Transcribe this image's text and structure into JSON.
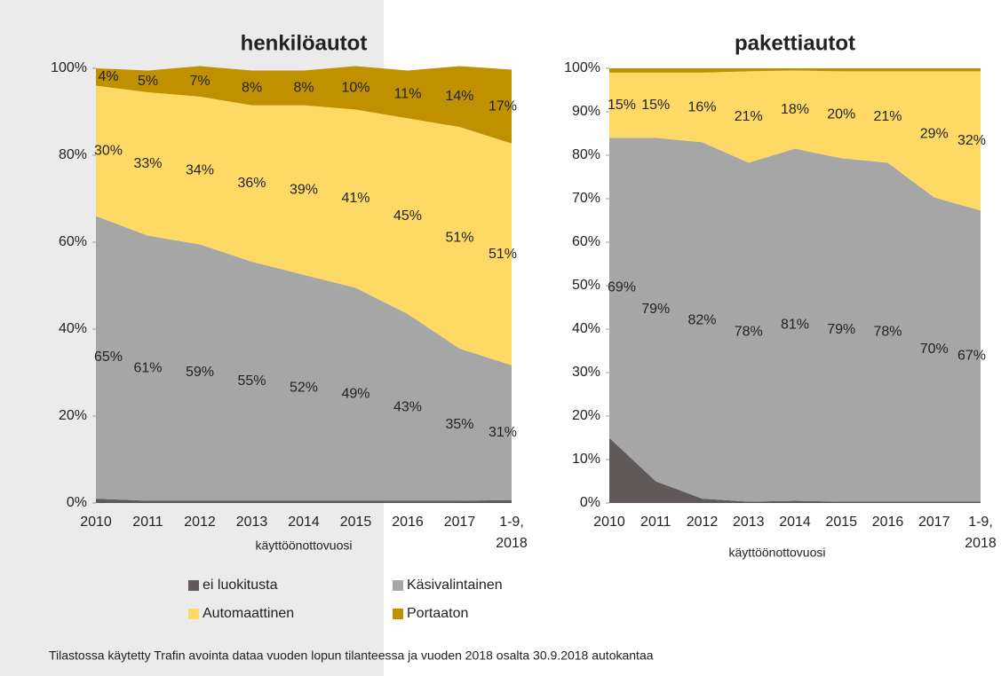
{
  "chart_data": [
    {
      "type": "stacked_area",
      "title": "henkilöautot",
      "xlabel": "käyttöönottovuosi",
      "categories": [
        "2010",
        "2011",
        "2012",
        "2013",
        "2014",
        "2015",
        "2016",
        "2017",
        "1-9, 2018"
      ],
      "ylim": [
        0,
        100
      ],
      "yticks": [
        {
          "value": 0,
          "label": "0%"
        },
        {
          "value": 20,
          "label": "20%"
        },
        {
          "value": 40,
          "label": "40%"
        },
        {
          "value": 60,
          "label": "60%"
        },
        {
          "value": 80,
          "label": "80%"
        },
        {
          "value": 100,
          "label": "100%"
        }
      ],
      "series": [
        {
          "name": "ei luokitusta",
          "color": "#5f5959",
          "values": [
            1,
            0.5,
            0.5,
            0.5,
            0.5,
            0.5,
            0.5,
            0.5,
            0.7
          ]
        },
        {
          "name": "Käsivalintainen",
          "color": "#a6a6a6",
          "values": [
            65,
            61,
            59,
            55,
            52,
            49,
            43,
            35,
            31
          ],
          "value_labels": [
            "65%",
            "61%",
            "59%",
            "55%",
            "52%",
            "49%",
            "43%",
            "35%",
            "31%"
          ]
        },
        {
          "name": "Automaattinen",
          "color": "#ffd966",
          "values": [
            30,
            33,
            34,
            36,
            39,
            41,
            45,
            51,
            51
          ],
          "value_labels": [
            "30%",
            "33%",
            "34%",
            "36%",
            "39%",
            "41%",
            "45%",
            "51%",
            "51%"
          ]
        },
        {
          "name": "Portaaton",
          "color": "#bf9000",
          "values": [
            4,
            5,
            7,
            8,
            8,
            10,
            11,
            14,
            17
          ],
          "value_labels": [
            "4%",
            "5%",
            "7%",
            "8%",
            "8%",
            "10%",
            "11%",
            "14%",
            "17%"
          ]
        }
      ]
    },
    {
      "type": "stacked_area",
      "title": "pakettiautot",
      "xlabel": "käyttöönottovuosi",
      "categories": [
        "2010",
        "2011",
        "2012",
        "2013",
        "2014",
        "2015",
        "2016",
        "2017",
        "1-9, 2018"
      ],
      "ylim": [
        0,
        100
      ],
      "yticks": [
        {
          "value": 0,
          "label": "0%"
        },
        {
          "value": 10,
          "label": "10%"
        },
        {
          "value": 20,
          "label": "20%"
        },
        {
          "value": 30,
          "label": "30%"
        },
        {
          "value": 40,
          "label": "40%"
        },
        {
          "value": 50,
          "label": "50%"
        },
        {
          "value": 60,
          "label": "60%"
        },
        {
          "value": 70,
          "label": "70%"
        },
        {
          "value": 80,
          "label": "80%"
        },
        {
          "value": 90,
          "label": "90%"
        },
        {
          "value": 100,
          "label": "100%"
        }
      ],
      "series": [
        {
          "name": "ei luokitusta",
          "color": "#5f5959",
          "values": [
            15,
            5,
            1,
            0.3,
            0.5,
            0.3,
            0.3,
            0.3,
            0.3
          ]
        },
        {
          "name": "Käsivalintainen",
          "color": "#a6a6a6",
          "values": [
            69,
            79,
            82,
            78,
            81,
            79,
            78,
            70,
            67
          ],
          "value_labels": [
            "69%",
            "79%",
            "82%",
            "78%",
            "81%",
            "79%",
            "78%",
            "70%",
            "67%"
          ]
        },
        {
          "name": "Automaattinen",
          "color": "#ffd966",
          "values": [
            15,
            15,
            16,
            21,
            18,
            20,
            21,
            29,
            32
          ],
          "value_labels": [
            "15%",
            "15%",
            "16%",
            "21%",
            "18%",
            "20%",
            "21%",
            "29%",
            "32%"
          ]
        },
        {
          "name": "Portaaton",
          "color": "#bf9000",
          "values": [
            1,
            1,
            1,
            0.7,
            0.5,
            0.7,
            0.7,
            0.7,
            0.7
          ]
        }
      ]
    }
  ],
  "footnote": "Tilastossa käytetty Trafin avointa dataa vuoden lopun tilanteessa ja vuoden 2018 osalta 30.9.2018 autokantaa"
}
